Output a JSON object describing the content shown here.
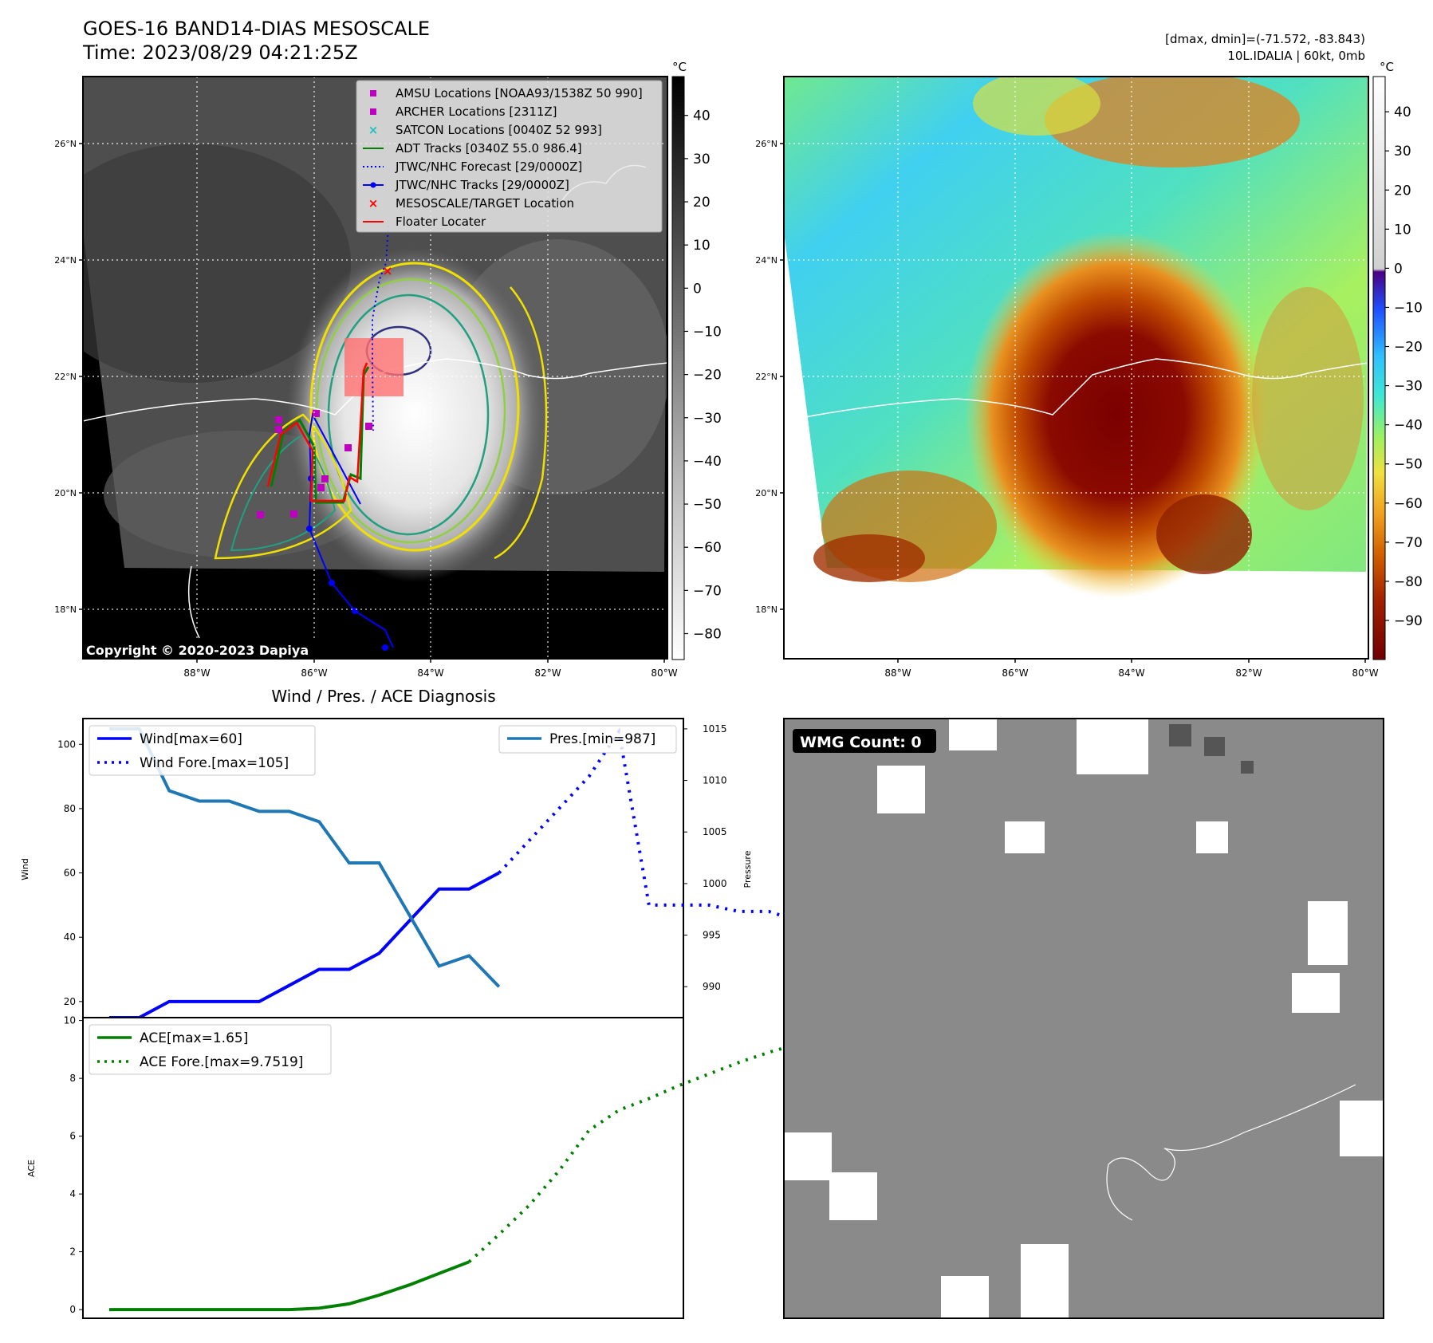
{
  "header": {
    "title": "GOES-16 BAND14-DIAS MESOSCALE",
    "time": "Time: 2023/08/29 04:21:25Z",
    "dminmax": "[dmax, dmin]=(-71.572, -83.843)",
    "storm": "10L.IDALIA | 60kt, 0mb"
  },
  "map_axes": {
    "lat_ticks": [
      "26°N",
      "24°N",
      "22°N",
      "20°N",
      "18°N"
    ],
    "lon_ticks": [
      "88°W",
      "86°W",
      "84°W",
      "82°W",
      "80°W"
    ],
    "lat_range": [
      17.2,
      27.2
    ],
    "lon_range": [
      -90,
      -80
    ]
  },
  "colorbar_left": {
    "unit": "°C",
    "ticks": [
      "40",
      "30",
      "20",
      "10",
      "0",
      "−10",
      "−20",
      "−30",
      "−40",
      "−50",
      "−60",
      "−70",
      "−80"
    ],
    "range": [
      -86,
      49
    ]
  },
  "colorbar_right": {
    "unit": "°C",
    "ticks": [
      "40",
      "30",
      "20",
      "10",
      "0",
      "−10",
      "−20",
      "−30",
      "−40",
      "−50",
      "−60",
      "−70",
      "−80",
      "−90"
    ],
    "range": [
      -100,
      49
    ]
  },
  "legend": [
    {
      "label": "AMSU Locations [NOAA93/1538Z 50 990]",
      "kind": "square",
      "color": "#c000c0"
    },
    {
      "label": "ARCHER Locations [2311Z]",
      "kind": "square",
      "color": "#c000c0"
    },
    {
      "label": "SATCON Locations [0040Z 52 993]",
      "kind": "x",
      "color": "#20c0c0"
    },
    {
      "label": "ADT Tracks [0340Z 55.0 986.4]",
      "kind": "line",
      "color": "#008000"
    },
    {
      "label": "JTWC/NHC Forecast [29/0000Z]",
      "kind": "dotted",
      "color": "#0000ff"
    },
    {
      "label": "JTWC/NHC Tracks [29/0000Z]",
      "kind": "line-dot",
      "color": "#0000ff"
    },
    {
      "label": "MESOSCALE/TARGET Location",
      "kind": "x",
      "color": "#ff0000"
    },
    {
      "label": "Floater Locater",
      "kind": "line",
      "color": "#ff0000"
    }
  ],
  "copyright": "Copyright © 2020-2023 Dapiya",
  "wmg": {
    "label": "WMG Count: 0"
  },
  "chart_data": [
    {
      "type": "line",
      "title": "Wind / Pres. / ACE Diagnosis",
      "ylabel": "Wind",
      "y2label": "Pressure",
      "ylim": [
        15,
        108
      ],
      "y2lim": [
        987,
        1016
      ],
      "yticks": [
        "100",
        "80",
        "60",
        "40",
        "20"
      ],
      "y2ticks": [
        "1015",
        "1010",
        "1005",
        "1000",
        "995",
        "990"
      ],
      "series": [
        {
          "name": "Wind[max=60]",
          "style": "solid",
          "color": "#0000ff",
          "axis": "left",
          "x": [
            0,
            1,
            2,
            3,
            4,
            5,
            6,
            7,
            8,
            9,
            10,
            11,
            12,
            13
          ],
          "y": [
            15,
            15,
            20,
            20,
            20,
            20,
            25,
            30,
            30,
            35,
            45,
            55,
            55,
            60
          ]
        },
        {
          "name": "Wind Fore.[max=105]",
          "style": "dotted",
          "color": "#0000ff",
          "axis": "left",
          "x": [
            13,
            14,
            15,
            16,
            17,
            18,
            19,
            20,
            21,
            22,
            23,
            24
          ],
          "y": [
            60,
            70,
            80,
            90,
            104,
            50,
            50,
            50,
            48,
            48,
            45,
            45
          ]
        },
        {
          "name": "Pres.[min=987]",
          "style": "solid",
          "color": "#1f77b4",
          "axis": "right",
          "x": [
            0,
            1,
            2,
            3,
            4,
            5,
            6,
            7,
            8,
            9,
            10,
            11,
            12,
            13
          ],
          "y": [
            1015,
            1015,
            1009,
            1008,
            1008,
            1007,
            1007,
            1006,
            1002,
            1002,
            997,
            992,
            993,
            990
          ]
        }
      ]
    },
    {
      "type": "line",
      "ylabel": "ACE",
      "ylim": [
        -0.3,
        10.1
      ],
      "yticks": [
        "10",
        "8",
        "6",
        "4",
        "2",
        "0"
      ],
      "series": [
        {
          "name": "ACE[max=1.65]",
          "style": "solid",
          "color": "#008000",
          "x": [
            0,
            1,
            2,
            3,
            4,
            5,
            6,
            7,
            8,
            9,
            10,
            11,
            12
          ],
          "y": [
            0,
            0,
            0,
            0,
            0,
            0,
            0,
            0.05,
            0.2,
            0.5,
            0.85,
            1.25,
            1.65
          ]
        },
        {
          "name": "ACE Fore.[max=9.7519]",
          "style": "dotted",
          "color": "#008000",
          "x": [
            12,
            13,
            14,
            15,
            16,
            17,
            18,
            19,
            20,
            21,
            22,
            23,
            24,
            25
          ],
          "y": [
            1.65,
            2.6,
            3.6,
            4.8,
            6.2,
            6.9,
            7.3,
            7.75,
            8.15,
            8.55,
            8.9,
            9.2,
            9.5,
            9.7519
          ]
        }
      ]
    }
  ]
}
